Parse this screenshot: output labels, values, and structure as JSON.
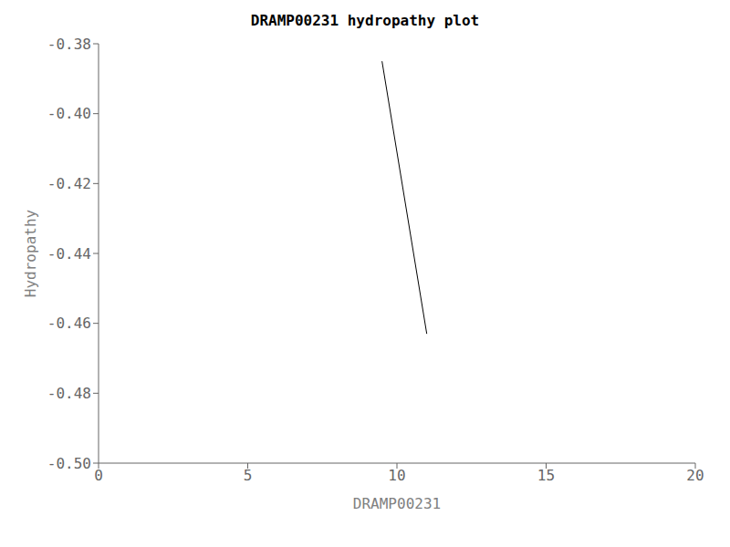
{
  "chart_data": {
    "type": "line",
    "title": "DRAMP00231 hydropathy plot",
    "xlabel": "DRAMP00231",
    "ylabel": "Hydropathy",
    "x": [
      9.5,
      11.0
    ],
    "values": [
      -0.385,
      -0.463
    ],
    "color": "#000000",
    "xlim": [
      0,
      20
    ],
    "ylim": [
      -0.5,
      -0.38
    ],
    "xticks": [
      0,
      5,
      10,
      15,
      20
    ],
    "yticks": [
      {
        "value": -0.5,
        "label": "-0.50"
      },
      -0.48,
      -0.46,
      -0.44,
      -0.42,
      {
        "value": -0.4,
        "label": "-0.40"
      },
      -0.38
    ],
    "grid": false
  }
}
